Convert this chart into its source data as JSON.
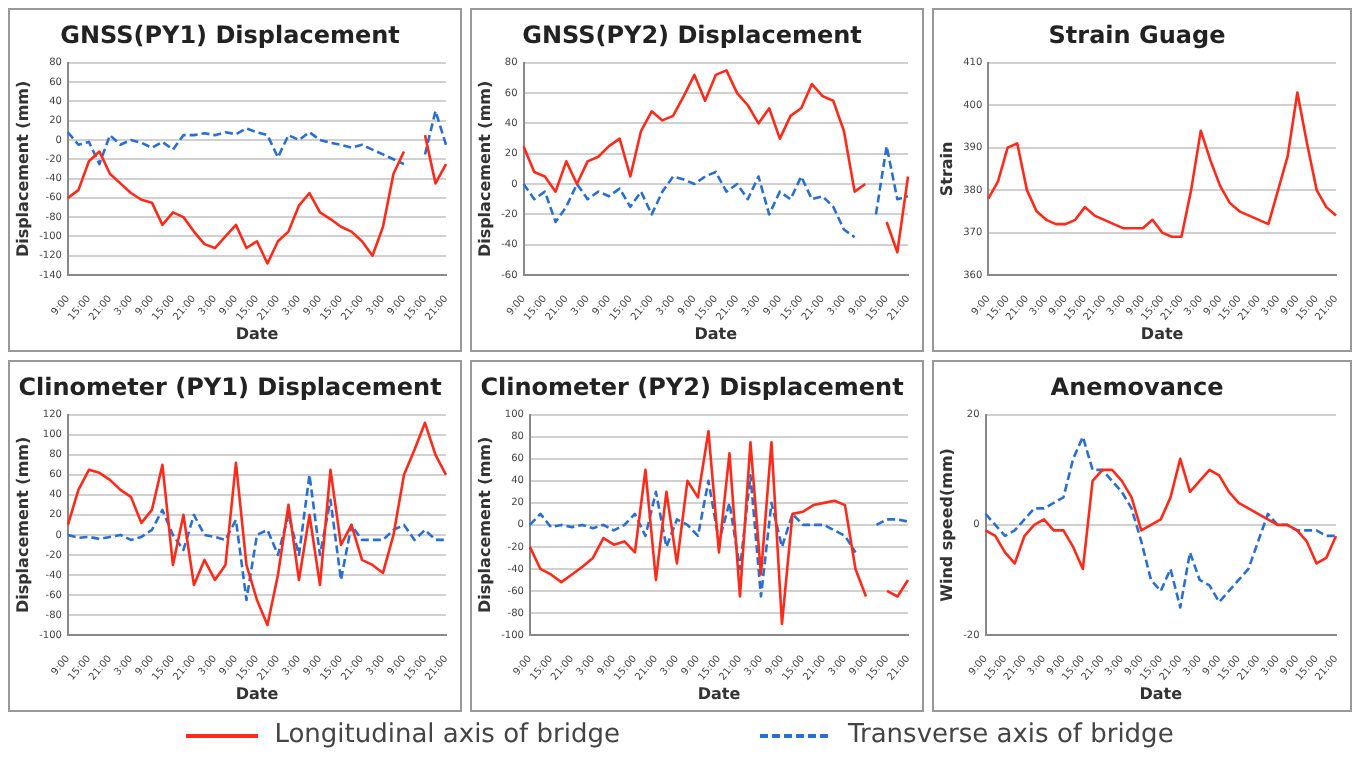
{
  "chart_data": [
    {
      "type": "line",
      "title": "GNSS(PY1) Displacement",
      "xlabel": "Date",
      "ylabel": "Displacement (mm)",
      "categories": [
        "9:00",
        null,
        "15:00",
        null,
        "21:00",
        null,
        "3:00",
        null,
        "9:00",
        null,
        "15:00",
        null,
        "21:00",
        null,
        "3:00",
        null,
        "9:00",
        null,
        "15:00",
        null,
        "21:00",
        null,
        "3:00",
        null,
        "9:00",
        null,
        "15:00",
        null,
        "21:00",
        null,
        "3:00",
        null,
        "9:00",
        null,
        "15:00",
        null,
        "21:00"
      ],
      "ylim": [
        -140,
        80
      ],
      "yticks": [
        -140,
        -120,
        -100,
        -80,
        -60,
        -40,
        -20,
        0,
        20,
        40,
        60,
        80
      ],
      "grid": "y",
      "legend": "bottom",
      "marker": "none",
      "series": [
        {
          "name": "Longitudinal axis of bridge",
          "color": "#ff2a1a",
          "line_style": "solid",
          "values": [
            -60,
            -52,
            -22,
            -12,
            -35,
            -45,
            -55,
            -62,
            -65,
            -88,
            -75,
            -80,
            -95,
            -108,
            -112,
            -100,
            -88,
            -112,
            -105,
            -128,
            -105,
            -95,
            -68,
            -55,
            -75,
            -82,
            -90,
            -95,
            -105,
            -120,
            -90,
            -35,
            -12,
            null,
            5,
            -45,
            -25
          ]
        },
        {
          "name": "Transverse axis of bridge",
          "color": "#2a6fd0",
          "line_style": "dashed",
          "values": [
            8,
            -5,
            -2,
            -25,
            5,
            -5,
            0,
            -3,
            -8,
            -2,
            -10,
            5,
            5,
            7,
            5,
            8,
            6,
            12,
            8,
            5,
            -18,
            5,
            0,
            8,
            0,
            -3,
            -5,
            -8,
            -5,
            -10,
            -15,
            -20,
            -25,
            null,
            -15,
            30,
            -5
          ]
        }
      ]
    },
    {
      "type": "line",
      "title": "GNSS(PY2) Displacement",
      "xlabel": "Date",
      "ylabel": "Displacement (mm)",
      "categories": [
        "9:00",
        null,
        "15:00",
        null,
        "21:00",
        null,
        "3:00",
        null,
        "9:00",
        null,
        "15:00",
        null,
        "21:00",
        null,
        "3:00",
        null,
        "9:00",
        null,
        "15:00",
        null,
        "21:00",
        null,
        "3:00",
        null,
        "9:00",
        null,
        "15:00",
        null,
        "21:00",
        null,
        "3:00",
        null,
        "9:00",
        null,
        "15:00",
        null,
        "21:00"
      ],
      "ylim": [
        -60,
        80
      ],
      "yticks": [
        -60,
        -40,
        -20,
        0,
        20,
        40,
        60,
        80
      ],
      "grid": "y",
      "legend": "bottom",
      "marker": "none",
      "series": [
        {
          "name": "Longitudinal axis of bridge",
          "color": "#ff2a1a",
          "line_style": "solid",
          "values": [
            25,
            8,
            5,
            -5,
            15,
            0,
            15,
            18,
            25,
            30,
            5,
            35,
            48,
            42,
            45,
            58,
            72,
            55,
            72,
            75,
            60,
            52,
            40,
            50,
            30,
            45,
            50,
            66,
            58,
            55,
            35,
            -5,
            0,
            null,
            -25,
            -45,
            5
          ]
        },
        {
          "name": "Transverse axis of bridge",
          "color": "#2a6fd0",
          "line_style": "dashed",
          "values": [
            0,
            -10,
            -5,
            -25,
            -15,
            0,
            -10,
            -5,
            -8,
            -3,
            -15,
            -5,
            -20,
            -5,
            5,
            3,
            0,
            5,
            8,
            -5,
            0,
            -10,
            5,
            -20,
            -5,
            -10,
            5,
            -10,
            -8,
            -15,
            -30,
            -35,
            null,
            -20,
            25,
            -10,
            -8
          ]
        }
      ]
    },
    {
      "type": "line",
      "title": "Strain Guage",
      "xlabel": "Date",
      "ylabel": "Strain",
      "categories": [
        "9:00",
        null,
        "15:00",
        null,
        "21:00",
        null,
        "3:00",
        null,
        "9:00",
        null,
        "15:00",
        null,
        "21:00",
        null,
        "3:00",
        null,
        "9:00",
        null,
        "15:00",
        null,
        "21:00",
        null,
        "3:00",
        null,
        "9:00",
        null,
        "15:00",
        null,
        "21:00",
        null,
        "3:00",
        null,
        "9:00",
        null,
        "15:00",
        null,
        "21:00"
      ],
      "ylim": [
        360,
        410
      ],
      "yticks": [
        360,
        370,
        380,
        390,
        400,
        410
      ],
      "grid": "y",
      "marker": "none",
      "series": [
        {
          "color": "#ff2a1a",
          "line_style": "solid",
          "values": [
            378,
            382,
            390,
            391,
            380,
            375,
            373,
            372,
            372,
            373,
            376,
            374,
            373,
            372,
            371,
            371,
            371,
            373,
            370,
            369,
            369,
            380,
            394,
            387,
            381,
            377,
            375,
            374,
            373,
            372,
            380,
            388,
            403,
            391,
            380,
            376,
            374
          ]
        }
      ]
    },
    {
      "type": "line",
      "title": "Clinometer (PY1) Displacement",
      "xlabel": "Date",
      "ylabel": "Displacement (mm)",
      "categories": [
        "9:00",
        null,
        "15:00",
        null,
        "21:00",
        null,
        "3:00",
        null,
        "9:00",
        null,
        "15:00",
        null,
        "21:00",
        null,
        "3:00",
        null,
        "9:00",
        null,
        "15:00",
        null,
        "21:00",
        null,
        "3:00",
        null,
        "9:00",
        null,
        "15:00",
        null,
        "21:00",
        null,
        "3:00",
        null,
        "9:00",
        null,
        "15:00",
        null,
        "21:00"
      ],
      "ylim": [
        -100,
        120
      ],
      "yticks": [
        -100,
        -80,
        -60,
        -40,
        -20,
        0,
        20,
        40,
        60,
        80,
        100,
        120
      ],
      "grid": "y",
      "legend": "bottom",
      "marker": "none",
      "series": [
        {
          "name": "Longitudinal axis of bridge",
          "color": "#ff2a1a",
          "line_style": "solid",
          "values": [
            10,
            45,
            65,
            62,
            55,
            45,
            38,
            12,
            25,
            70,
            -30,
            20,
            -50,
            -25,
            -45,
            -30,
            72,
            -30,
            -65,
            -90,
            -40,
            30,
            -45,
            20,
            -50,
            65,
            -10,
            10,
            -25,
            -30,
            -38,
            0,
            60,
            85,
            112,
            80,
            60
          ]
        },
        {
          "name": "Transverse axis of bridge",
          "color": "#2a6fd0",
          "line_style": "dashed",
          "values": [
            0,
            -3,
            -2,
            -4,
            -2,
            0,
            -5,
            -2,
            5,
            25,
            0,
            -15,
            20,
            0,
            -2,
            -5,
            15,
            -65,
            0,
            5,
            -20,
            20,
            -20,
            60,
            -20,
            35,
            -45,
            10,
            -5,
            -5,
            -5,
            5,
            10,
            -5,
            5,
            -5,
            -5
          ]
        }
      ]
    },
    {
      "type": "line",
      "title": "Clinometer (PY2) Displacement",
      "xlabel": "Date",
      "ylabel": "Displacement (mm)",
      "categories": [
        "9:00",
        null,
        "15:00",
        null,
        "21:00",
        null,
        "3:00",
        null,
        "9:00",
        null,
        "15:00",
        null,
        "21:00",
        null,
        "3:00",
        null,
        "9:00",
        null,
        "15:00",
        null,
        "21:00",
        null,
        "3:00",
        null,
        "9:00",
        null,
        "15:00",
        null,
        "21:00",
        null,
        "3:00",
        null,
        "9:00",
        null,
        "15:00",
        null,
        "21:00"
      ],
      "ylim": [
        -100,
        100
      ],
      "yticks": [
        -100,
        -80,
        -60,
        -40,
        -20,
        0,
        20,
        40,
        60,
        80,
        100
      ],
      "grid": "y",
      "legend": "bottom",
      "marker": "none",
      "series": [
        {
          "name": "Longitudinal axis of bridge",
          "color": "#ff2a1a",
          "line_style": "solid",
          "values": [
            -20,
            -40,
            -45,
            -52,
            -45,
            -38,
            -30,
            -12,
            -18,
            -15,
            -25,
            50,
            -50,
            30,
            -35,
            40,
            25,
            85,
            -25,
            65,
            -65,
            75,
            -45,
            75,
            -90,
            10,
            12,
            18,
            20,
            22,
            18,
            -40,
            -65,
            null,
            -60,
            -65,
            -50
          ]
        },
        {
          "name": "Transverse axis of bridge",
          "color": "#2a6fd0",
          "line_style": "dashed",
          "values": [
            0,
            10,
            -2,
            0,
            -2,
            0,
            -3,
            0,
            -5,
            0,
            10,
            -10,
            30,
            -20,
            5,
            0,
            -10,
            40,
            -15,
            20,
            -40,
            45,
            -65,
            20,
            -20,
            10,
            0,
            0,
            0,
            -5,
            -10,
            -25,
            null,
            0,
            5,
            5,
            3
          ]
        }
      ]
    },
    {
      "type": "line",
      "title": "Anemovance",
      "xlabel": "Date",
      "ylabel": "Wind speed(mm)",
      "categories": [
        "9:00",
        null,
        "15:00",
        null,
        "21:00",
        null,
        "3:00",
        null,
        "9:00",
        null,
        "15:00",
        null,
        "21:00",
        null,
        "3:00",
        null,
        "9:00",
        null,
        "15:00",
        null,
        "21:00",
        null,
        "3:00",
        null,
        "9:00",
        null,
        "15:00",
        null,
        "21:00",
        null,
        "3:00",
        null,
        "9:00",
        null,
        "15:00",
        null,
        "21:00"
      ],
      "ylim": [
        -20,
        20
      ],
      "yticks": [
        -20,
        0,
        20
      ],
      "grid": "y",
      "legend": "bottom",
      "marker": "none",
      "series": [
        {
          "name": "Longitudinal axis of bridge",
          "color": "#ff2a1a",
          "line_style": "solid",
          "values": [
            -1,
            -2,
            -5,
            -7,
            -2,
            0,
            1,
            -1,
            -1,
            -4,
            -8,
            8,
            10,
            10,
            8,
            5,
            -1,
            0,
            1,
            5,
            12,
            6,
            8,
            10,
            9,
            6,
            4,
            3,
            2,
            1,
            0,
            0,
            -1,
            -3,
            -7,
            -6,
            -2
          ]
        },
        {
          "name": "Transverse axis of bridge",
          "color": "#2a6fd0",
          "line_style": "dashed",
          "values": [
            2,
            0,
            -2,
            -1,
            1,
            3,
            3,
            4,
            5,
            12,
            16,
            10,
            10,
            8,
            6,
            3,
            -3,
            -10,
            -12,
            -8,
            -15,
            -5,
            -10,
            -11,
            -14,
            -12,
            -10,
            -8,
            -3,
            2,
            0,
            0,
            -1,
            -1,
            -1,
            -2,
            -2
          ]
        }
      ]
    }
  ]
}
